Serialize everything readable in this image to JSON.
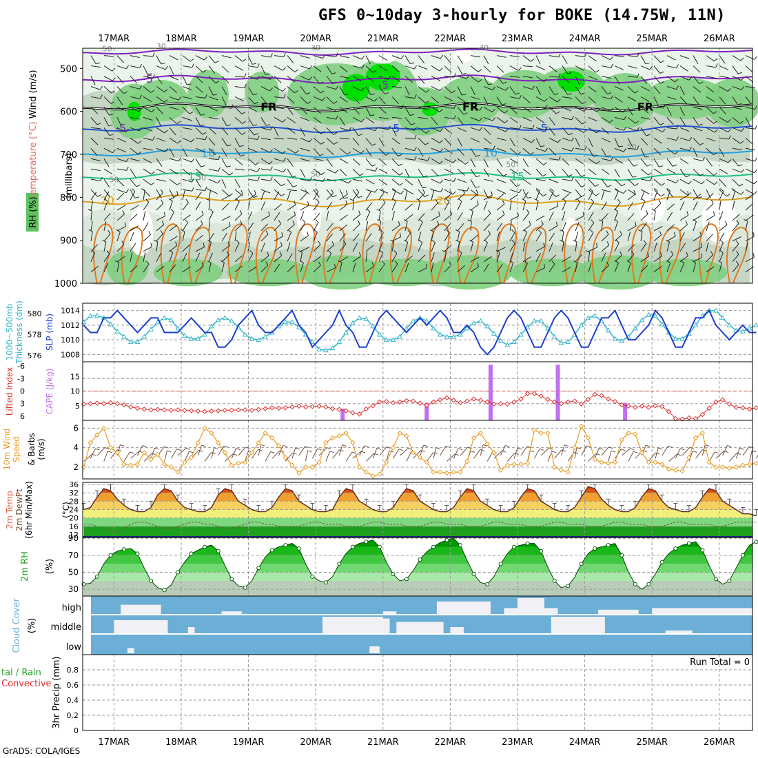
{
  "title": "GFS 0~10day 3-hourly for BOKE (14.75W, 11N)",
  "footer": "GrADS: COLA/IGES",
  "colors": {
    "rh_green_light": "#cfe7cf",
    "rh_green_mid": "#7fcf7f",
    "rh_green_bright": "#00e000",
    "grey_band": "#b9c9b9",
    "slp": "#1b3fcf",
    "thickness": "#33b5c8",
    "lifted_index": "#e03030",
    "cape": "#c070f0",
    "wind_speed": "#e89a20",
    "barb": "#705040",
    "cloud_bg": "#6baed6",
    "cloud_fill": "#f0f0f5"
  },
  "time_axis": {
    "labels": [
      "17MAR",
      "18MAR",
      "19MAR",
      "20MAR",
      "21MAR",
      "22MAR",
      "23MAR",
      "24MAR",
      "25MAR",
      "26MAR"
    ]
  },
  "chart_data": [
    {
      "type": "heatmap",
      "panel": "upper-air",
      "ylabel_parts": [
        "RH (%)",
        "Temperature (°C)",
        "Wind (m/s)"
      ],
      "ylabel_units": "(millibars)",
      "yticks": [
        500,
        600,
        700,
        800,
        900,
        1000
      ],
      "ylim": [
        1000,
        450
      ],
      "isotherms": [
        {
          "label": "-10",
          "level_mb": 465,
          "color": "#8020c0"
        },
        {
          "label": "-5",
          "level_mb": 520,
          "color": "#8020c0"
        },
        {
          "label": "FR",
          "level_mb": 590,
          "color": "#000000"
        },
        {
          "label": "-5",
          "level_mb": 540,
          "color": "#8020c0"
        },
        {
          "label": "5",
          "level_mb": 640,
          "color": "#2050d0"
        },
        {
          "label": "10",
          "level_mb": 695,
          "color": "#20a0e0"
        },
        {
          "label": "15",
          "level_mb": 752,
          "color": "#20c080"
        },
        {
          "label": "20",
          "level_mb": 805,
          "color": "#e0a020"
        },
        {
          "label": "50",
          "level_mb": 760,
          "color": "#999999"
        },
        {
          "label": "30",
          "level_mb": 460,
          "color": "#999999"
        }
      ]
    },
    {
      "type": "line",
      "panel": "slp-thickness",
      "ylabel_left": "1000~500mb Thickness (dm)",
      "ylabel_right": "SLP (mb)",
      "yticks_left": [
        576,
        578,
        580
      ],
      "yticks_right": [
        1008,
        1010,
        1012,
        1014
      ],
      "series": [
        {
          "name": "SLP (mb)",
          "axis": "right",
          "values": [
            1012,
            1011,
            1011,
            1013,
            1013,
            1014,
            1013,
            1012,
            1011,
            1012,
            1013,
            1013,
            1011,
            1011,
            1011,
            1012,
            1013,
            1012,
            1011,
            1011,
            1009,
            1009,
            1010,
            1012,
            1013,
            1014,
            1012,
            1011,
            1011,
            1012,
            1013,
            1014,
            1012,
            1011,
            1009,
            1010,
            1011,
            1012,
            1014,
            1012,
            1011,
            1009,
            1009,
            1011,
            1013,
            1014,
            1013,
            1012,
            1011,
            1012,
            1013,
            1012,
            1013,
            1014,
            1013,
            1011,
            1011,
            1012,
            1011,
            1009,
            1008,
            1009,
            1011,
            1013,
            1014,
            1013,
            1011,
            1009,
            1009,
            1011,
            1013,
            1014,
            1013,
            1011,
            1009,
            1009,
            1011,
            1013,
            1013,
            1014,
            1012,
            1010,
            1010,
            1011,
            1012,
            1014,
            1013,
            1011,
            1009,
            1009,
            1011,
            1013,
            1013,
            1014,
            1012,
            1011,
            1010,
            1011,
            1012,
            1011,
            1011
          ]
        },
        {
          "name": "1000~500mb Thickness (dm)",
          "axis": "left",
          "values": [
            579.2,
            579.8,
            579.8,
            579.6,
            579.0,
            578.3,
            577.8,
            577.3,
            577.3,
            577.8,
            578.5,
            579.2,
            579.6,
            579.4,
            578.6,
            577.9,
            577.6,
            577.6,
            578.0,
            578.8,
            579.4,
            579.6,
            579.3,
            578.7,
            578.0,
            577.6,
            577.5,
            577.8,
            578.2,
            578.8,
            579.2,
            579.2,
            578.7,
            578.0,
            577.3,
            576.6,
            576.5,
            576.7,
            577.3,
            578.2,
            579.1,
            579.6,
            579.5,
            578.8,
            578.0,
            577.5,
            577.5,
            577.8,
            578.6,
            579.3,
            579.6,
            579.3,
            578.6,
            578.0,
            577.8,
            577.8,
            578.0,
            578.6,
            579.1,
            579.3,
            578.8,
            578.1,
            577.4,
            577.0,
            577.3,
            578.0,
            578.7,
            579.3,
            579.3,
            578.6,
            577.8,
            577.2,
            577.3,
            578.0,
            578.9,
            579.6,
            579.8,
            579.3,
            578.4,
            577.6,
            577.4,
            577.8,
            578.6,
            579.4,
            579.9,
            579.8,
            579.0,
            578.2,
            577.6,
            577.6,
            578.1,
            578.9,
            579.8,
            580.3,
            580.3,
            579.6,
            578.9,
            578.4,
            578.3,
            578.6,
            578.9
          ]
        }
      ]
    },
    {
      "type": "bar",
      "panel": "cape-li",
      "ylabel": "Lifted Index CAPE (J/kg)",
      "yticks_left": [
        -6,
        -3,
        0,
        3,
        6
      ],
      "yticks_right": [
        5,
        10,
        15
      ],
      "series": [
        {
          "name": "Lifted Index",
          "values": [
            3.1,
            3.0,
            2.9,
            3.0,
            2.8,
            3.0,
            3.3,
            3.8,
            4.1,
            4.3,
            4.5,
            4.4,
            4.5,
            4.6,
            4.5,
            4.6,
            4.7,
            4.8,
            4.9,
            4.8,
            4.7,
            4.6,
            4.6,
            4.5,
            4.5,
            4.6,
            4.4,
            4.2,
            4.0,
            4.1,
            4.0,
            3.8,
            3.6,
            3.8,
            3.7,
            3.6,
            3.8,
            4.2,
            4.4,
            4.7,
            5.2,
            5.5,
            4.3,
            3.5,
            2.6,
            2.5,
            2.8,
            2.6,
            2.3,
            2.4,
            2.9,
            3.4,
            2.6,
            2.1,
            1.6,
            2.2,
            2.8,
            2.4,
            1.9,
            2.2,
            2.6,
            3.1,
            3.0,
            3.1,
            2.6,
            1.9,
            0.6,
            0.6,
            1.2,
            2.0,
            2.6,
            3.0,
            2.6,
            2.4,
            3.1,
            2.0,
            0.8,
            1.1,
            1.9,
            2.5,
            3.3,
            3.6,
            3.9,
            3.6,
            3.9,
            3.5,
            3.7,
            4.9,
            6.6,
            6.7,
            6.4,
            6.6,
            5.6,
            4.1,
            2.6,
            2.1,
            3.1,
            3.9,
            4.0,
            4.3,
            4.0
          ]
        },
        {
          "name": "CAPE (J/kg)",
          "values": [
            {
              "day": 20.4,
              "value": 4
            },
            {
              "day": 21.65,
              "value": 6
            },
            {
              "day": 22.6,
              "value": 19
            },
            {
              "day": 23.6,
              "value": 19
            },
            {
              "day": 24.6,
              "value": 6
            }
          ]
        }
      ]
    },
    {
      "type": "line",
      "panel": "wind10m",
      "ylabel": "10m Wind Speed & Barbs (m/s)",
      "yticks": [
        2,
        4,
        6
      ],
      "series": [
        {
          "name": "10m Wind Speed",
          "values": [
            2.0,
            4.5,
            5.3,
            6.0,
            4.0,
            3.5,
            2.3,
            2.2,
            2.3,
            3.5,
            2.8,
            3.3,
            2.3,
            2.0,
            1.5,
            2.5,
            3.0,
            4.5,
            6.0,
            5.5,
            4.5,
            3.5,
            2.2,
            2.4,
            2.5,
            3.5,
            4.5,
            5.5,
            5.0,
            4.2,
            3.0,
            2.2,
            1.4,
            2.0,
            2.0,
            2.5,
            4.5,
            5.0,
            5.2,
            5.5,
            4.5,
            2.0,
            1.5,
            1.1,
            1.3,
            2.5,
            4.0,
            5.5,
            5.2,
            3.5,
            3.0,
            2.5,
            1.5,
            1.5,
            1.4,
            1.5,
            1.5,
            2.6,
            5.0,
            5.5,
            4.4,
            3.5,
            1.7,
            2.2,
            2.3,
            2.3,
            2.4,
            5.8,
            5.5,
            5.5,
            2.0,
            1.7,
            1.5,
            4.0,
            6.2,
            5.0,
            2.8,
            2.5,
            2.4,
            2.5,
            4.8,
            5.5,
            5.4,
            3.5,
            2.5,
            2.5,
            2.3,
            1.8,
            1.7,
            1.6,
            3.0,
            5.0,
            5.5,
            2.5,
            2.0,
            2.0,
            1.9,
            2.0,
            2.2,
            2.3,
            2.4
          ]
        }
      ]
    },
    {
      "type": "area",
      "panel": "temp2m",
      "ylabel": "2m Temp 2m DewPt (6hr Min/Max) (°C)",
      "yticks": [
        12,
        16,
        20,
        24,
        28,
        32,
        36
      ],
      "series": [
        {
          "name": "2m Temp",
          "values": [
            24,
            25,
            30,
            34,
            33,
            29,
            26,
            24,
            23,
            23,
            25,
            31,
            34,
            33,
            28,
            25,
            24,
            23,
            23,
            25,
            31,
            34,
            33,
            28,
            26,
            24,
            23,
            23,
            25,
            30,
            34,
            33,
            28,
            26,
            24,
            23,
            23,
            24,
            30,
            34,
            33,
            28,
            26,
            24,
            23,
            23,
            25,
            30,
            34,
            33,
            28,
            26,
            24,
            23,
            23,
            25,
            30,
            34,
            33,
            28,
            26,
            24,
            23,
            23,
            25,
            30,
            34,
            33,
            28,
            26,
            24,
            23,
            23,
            25,
            30,
            35,
            34,
            29,
            26,
            24,
            23,
            23,
            25,
            30,
            34,
            33,
            28,
            25,
            24,
            23,
            23,
            25,
            30,
            34,
            33,
            28,
            26,
            24,
            22,
            22,
            21
          ]
        },
        {
          "name": "2m DewPt",
          "values": [
            17,
            17,
            16,
            15,
            14,
            13,
            15,
            17,
            18,
            18,
            17,
            16,
            15,
            15,
            16,
            17,
            18,
            18,
            17,
            17,
            16,
            15,
            15,
            16,
            17,
            18,
            18,
            17,
            17,
            16,
            16,
            16,
            16,
            17,
            18,
            18,
            17,
            17,
            17,
            16,
            16,
            16,
            17,
            18,
            18,
            17,
            17,
            17,
            16,
            16,
            16,
            17,
            18,
            18,
            17,
            17,
            17,
            16,
            16,
            16,
            17,
            18,
            18,
            17,
            17,
            17,
            16,
            16,
            16,
            17,
            18,
            18,
            17,
            17,
            17,
            16,
            16,
            16,
            17,
            18,
            18,
            17,
            17,
            17,
            16,
            16,
            16,
            17,
            18,
            18,
            17,
            17,
            17,
            17,
            16,
            16,
            17,
            18,
            18,
            18,
            18
          ]
        }
      ]
    },
    {
      "type": "area",
      "panel": "rh2m",
      "ylabel": "2m RH (%)",
      "yticks": [
        30,
        50,
        70,
        90
      ],
      "series": [
        {
          "name": "2m RH",
          "values": [
            36,
            37,
            45,
            60,
            70,
            75,
            77,
            78,
            72,
            55,
            40,
            32,
            29,
            35,
            50,
            62,
            72,
            76,
            80,
            82,
            75,
            58,
            42,
            34,
            32,
            40,
            55,
            68,
            76,
            80,
            82,
            84,
            78,
            60,
            45,
            40,
            38,
            45,
            60,
            72,
            80,
            84,
            86,
            88,
            80,
            62,
            48,
            40,
            42,
            52,
            65,
            74,
            80,
            85,
            88,
            90,
            82,
            64,
            48,
            38,
            36,
            45,
            60,
            72,
            80,
            82,
            84,
            84,
            75,
            56,
            40,
            32,
            34,
            44,
            60,
            72,
            78,
            80,
            82,
            84,
            70,
            50,
            36,
            30,
            36,
            48,
            62,
            72,
            78,
            82,
            84,
            86,
            76,
            58,
            42,
            36,
            40,
            55,
            70,
            82,
            86
          ]
        }
      ]
    },
    {
      "type": "heatmap",
      "panel": "cloud",
      "ylabel": "Cloud Cover (%)",
      "row_labels": [
        "high",
        "middle",
        "low"
      ]
    },
    {
      "type": "bar",
      "panel": "precip",
      "ylabel_parts": [
        "Total / Rain",
        "Convective",
        "3hr Precip (mm)"
      ],
      "yticks": [
        0,
        0.2,
        0.4,
        0.6,
        0.8
      ],
      "ylim": [
        0,
        1
      ],
      "run_total_label": "Run Total = 0",
      "values": []
    }
  ]
}
